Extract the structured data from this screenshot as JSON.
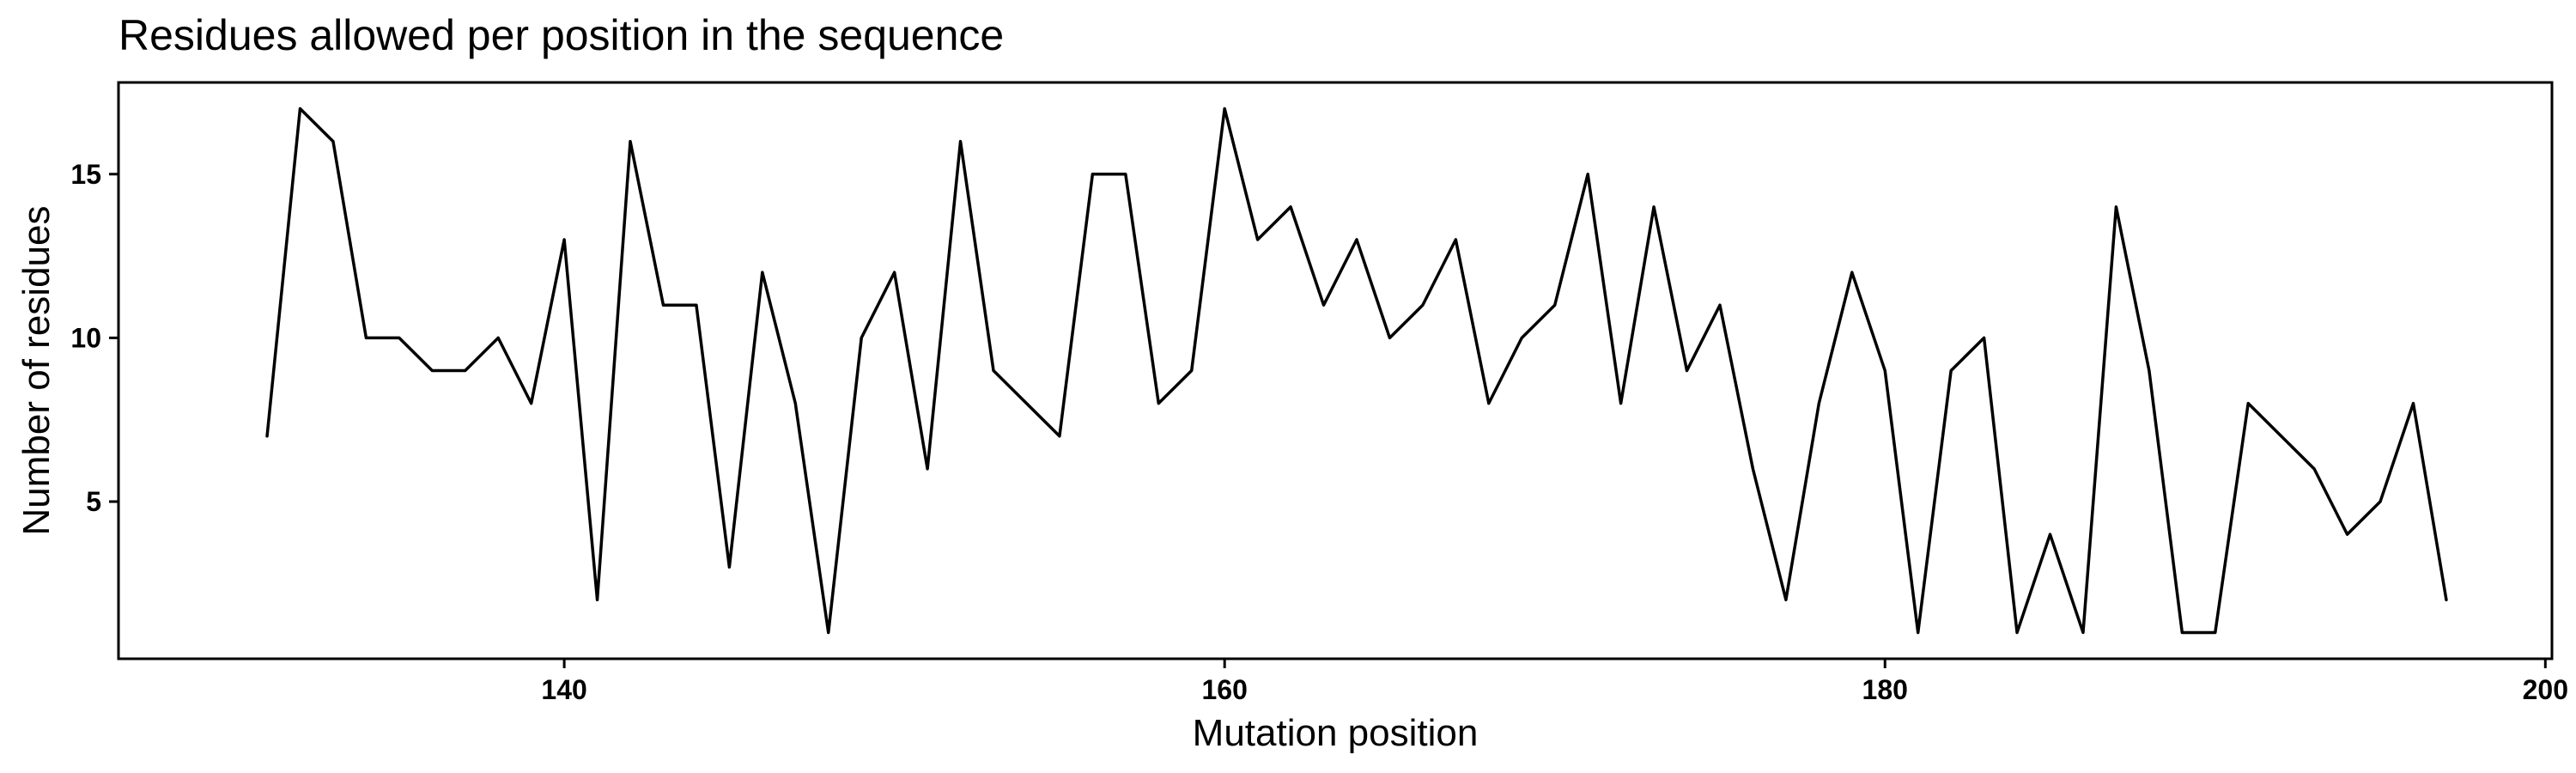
{
  "chart_data": {
    "type": "line",
    "title": "Residues allowed per position in the sequence",
    "xlabel": "Mutation position",
    "ylabel": "Number of residues",
    "xlim": [
      126.5,
      200.2
    ],
    "ylim": [
      0.2,
      17.8
    ],
    "xticks": [
      140,
      160,
      180,
      200
    ],
    "yticks": [
      5,
      10,
      15
    ],
    "grid": false,
    "legend": "none",
    "line_color": "#000000",
    "series": [
      {
        "x": [
          131,
          132,
          133,
          134,
          135,
          136,
          137,
          138,
          139,
          140,
          141,
          142,
          143,
          144,
          145,
          146,
          147,
          148,
          149,
          150,
          151,
          152,
          153,
          154,
          155,
          156,
          157,
          158,
          159,
          160,
          161,
          162,
          163,
          164,
          165,
          166,
          167,
          168,
          169,
          170,
          171,
          172,
          173,
          174,
          175,
          176,
          177,
          178,
          179,
          180,
          181,
          182,
          183,
          184,
          185,
          186,
          187,
          188,
          189,
          190,
          191,
          192,
          193,
          194,
          195,
          196,
          197
        ],
        "values": [
          7,
          17,
          16,
          10,
          10,
          9,
          9,
          10,
          8,
          13,
          2,
          16,
          11,
          11,
          3,
          12,
          8,
          1,
          10,
          12,
          6,
          16,
          9,
          8,
          7,
          15,
          15,
          8,
          9,
          17,
          13,
          14,
          11,
          13,
          10,
          11,
          13,
          8,
          10,
          11,
          15,
          8,
          14,
          9,
          11,
          6,
          2,
          8,
          12,
          9,
          1,
          9,
          10,
          1,
          4,
          1,
          14,
          9,
          1,
          1,
          8,
          7,
          6,
          4,
          5,
          8,
          2
        ]
      }
    ]
  }
}
